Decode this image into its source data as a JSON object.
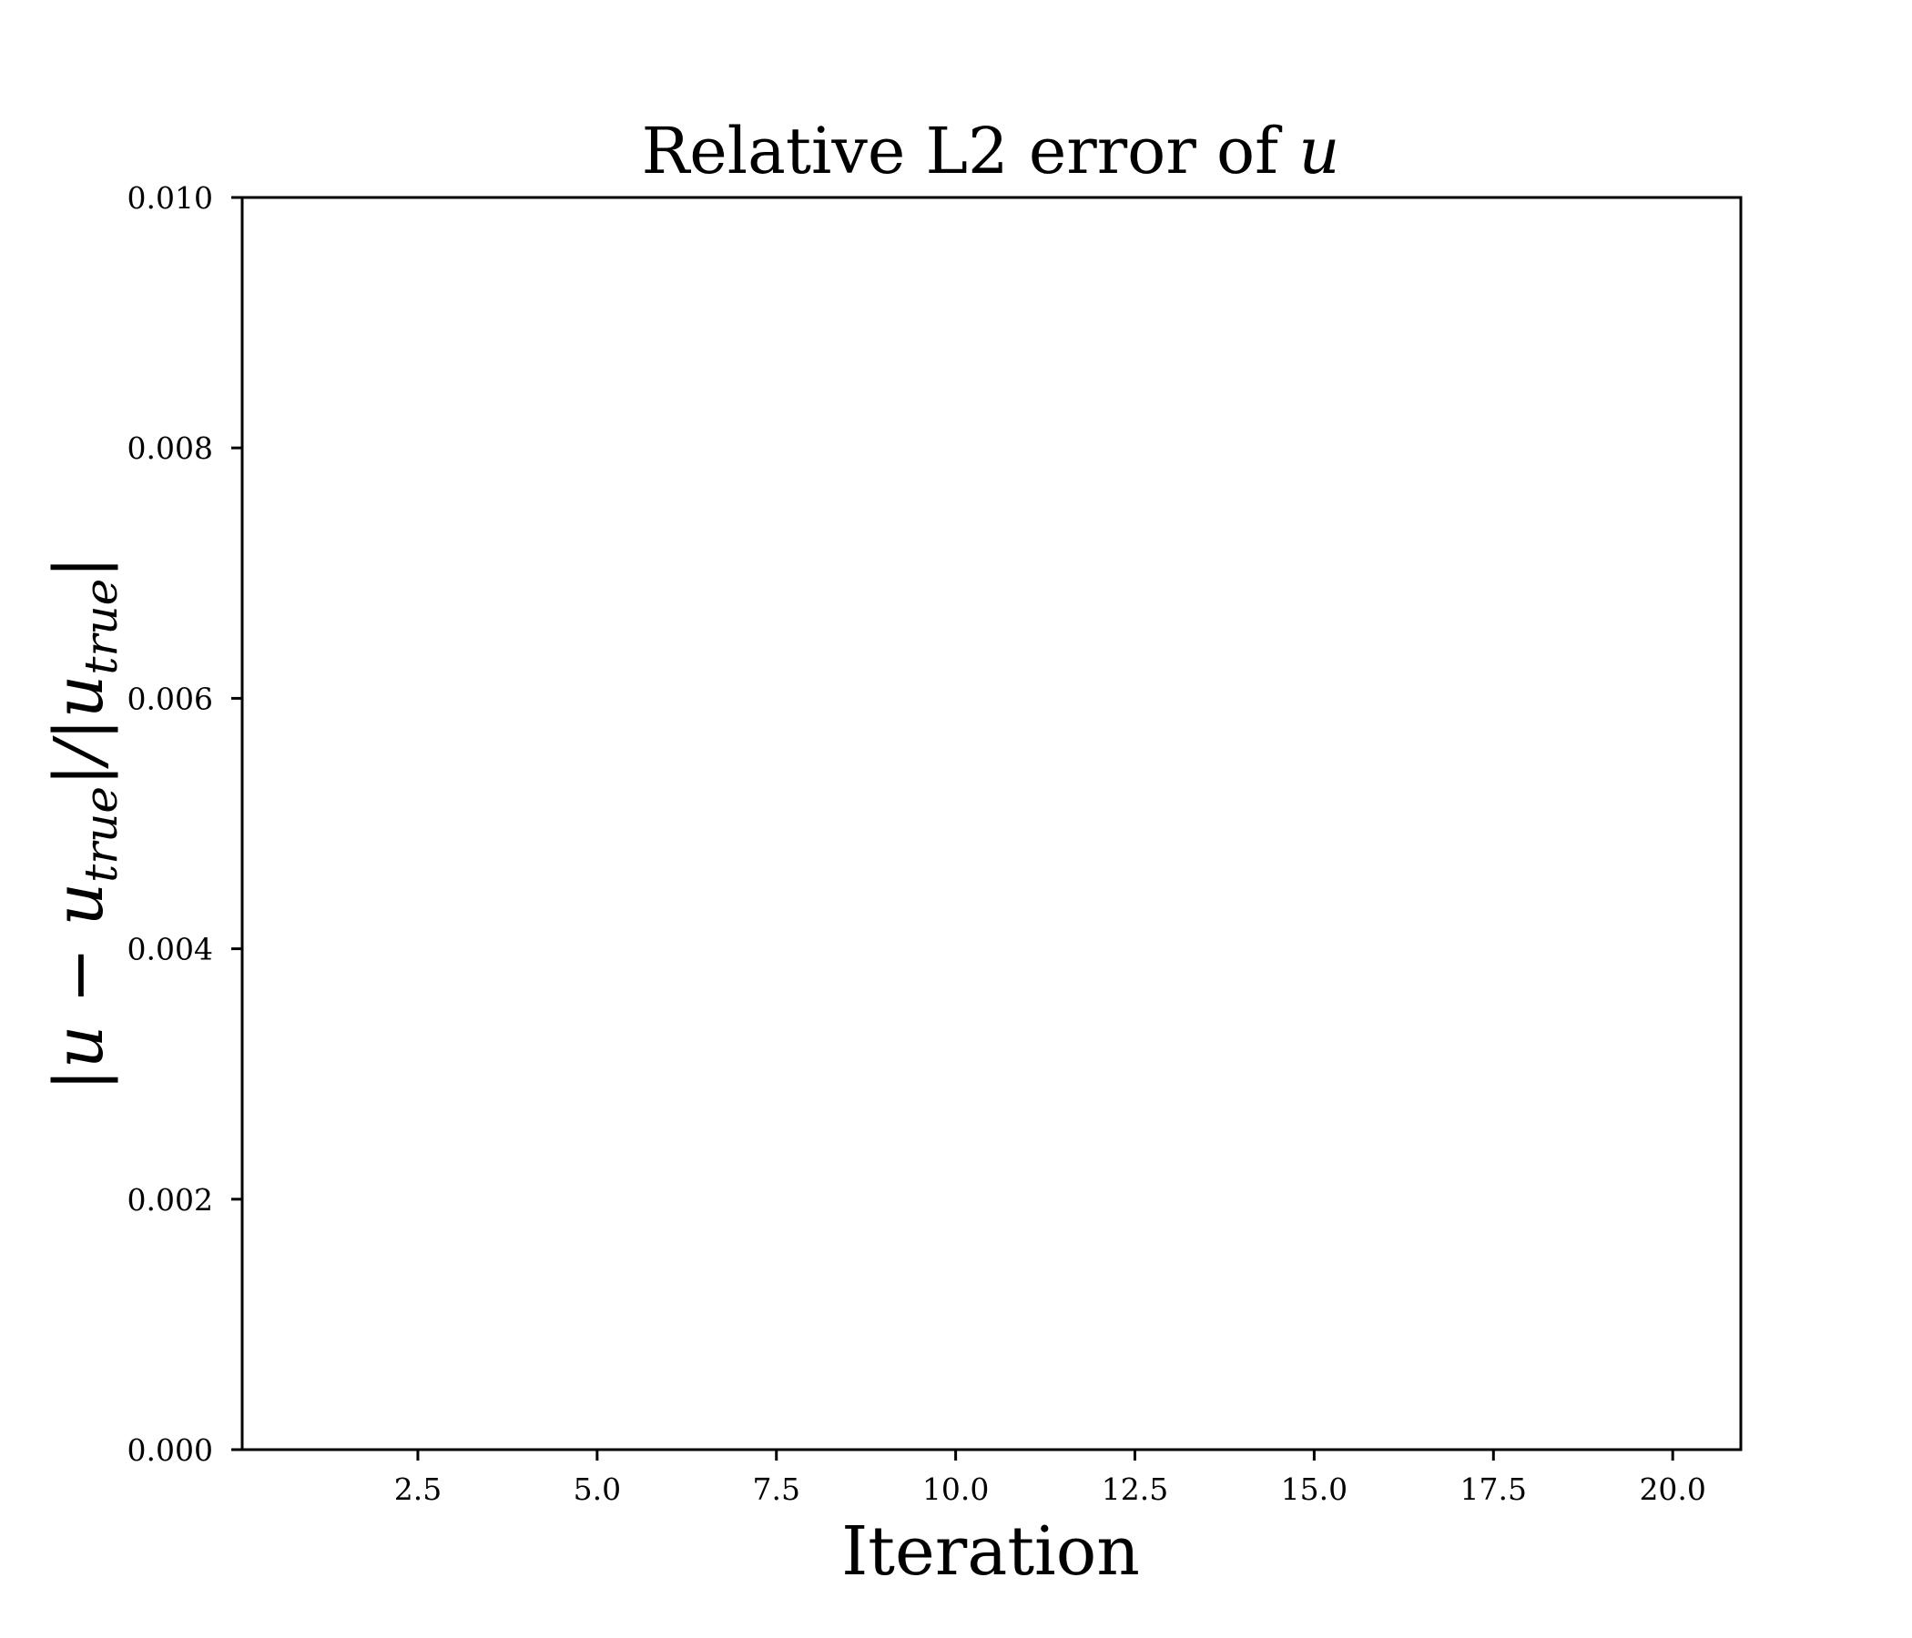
{
  "chart_data": {
    "type": "line",
    "title": "Relative L2 error of ",
    "title_var": "u",
    "xlabel": "Iteration",
    "ylabel": {
      "part1": "|u − u",
      "sub1": "true",
      "part2": "|/|u",
      "sub2": "true",
      "part3": "|"
    },
    "xlim": [
      0.05,
      20.95
    ],
    "ylim": [
      0.0,
      0.01
    ],
    "xticks": [
      "2.5",
      "5.0",
      "7.5",
      "10.0",
      "12.5",
      "15.0",
      "17.5",
      "20.0"
    ],
    "yticks": [
      "0.000",
      "0.002",
      "0.004",
      "0.006",
      "0.008",
      "0.010"
    ],
    "grid": false,
    "series": []
  }
}
